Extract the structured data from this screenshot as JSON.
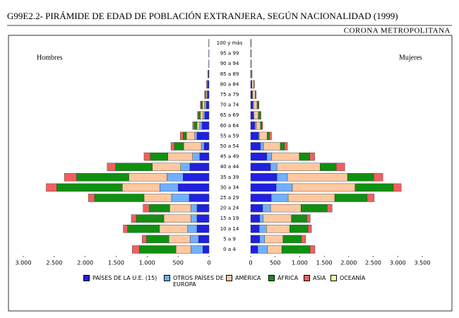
{
  "chart_data": {
    "type": "pyramid",
    "title": "G99E2.2- PIRÁMIDE DE EDAD DE POBLACIÓN EXTRANJERA, SEGÚN NACIONALIDAD (1999)",
    "subtitle": "CORONA METROPOLITANA",
    "men_label": "Hombres",
    "women_label": "Mujeres",
    "categories": [
      "0 a 4",
      "5 a 9",
      "10 a 14",
      "15 a 19",
      "20 a 24",
      "25 a 29",
      "30 a 34",
      "35 a 39",
      "40 a 44",
      "45 a 49",
      "50 a 54",
      "55 a 59",
      "60 a 64",
      "65 a 69",
      "70 a 74",
      "75 a 79",
      "80 a 84",
      "85 a 89",
      "90 a 94",
      "95 a 99",
      "100 y más"
    ],
    "men_xlim": [
      0,
      3000
    ],
    "men_xticks": [
      {
        "value": 3000,
        "label": "3.000"
      },
      {
        "value": 2500,
        "label": "2.500"
      },
      {
        "value": 2000,
        "label": "2.000"
      },
      {
        "value": 1500,
        "label": "1.500"
      },
      {
        "value": 1000,
        "label": "1.000"
      },
      500,
      0
    ],
    "women_xlim": [
      0,
      3500
    ],
    "women_xticks": [
      0,
      500,
      {
        "value": 1000,
        "label": "1.000"
      },
      {
        "value": 1500,
        "label": "1.500"
      },
      {
        "value": 2000,
        "label": "2.000"
      },
      {
        "value": 2500,
        "label": "2.500"
      },
      {
        "value": 3000,
        "label": "3.000"
      },
      {
        "value": 3500,
        "label": "3.500"
      }
    ],
    "series": [
      {
        "name": "PAÍSES DE LA U.E. (15)",
        "color": "#2020e0",
        "men": [
          100,
          170,
          195,
          195,
          195,
          320,
          500,
          420,
          310,
          150,
          80,
          195,
          115,
          70,
          45,
          25,
          15,
          10,
          5,
          5,
          5
        ],
        "women": [
          145,
          185,
          175,
          185,
          245,
          420,
          520,
          535,
          405,
          330,
          200,
          160,
          85,
          55,
          45,
          30,
          20,
          15,
          5,
          5,
          5
        ]
      },
      {
        "name": "OTROS PAÍSES DE EUROPA",
        "color": "#70b0ff",
        "men": [
          195,
          137,
          150,
          100,
          100,
          285,
          295,
          260,
          150,
          115,
          45,
          35,
          35,
          25,
          25,
          10,
          5,
          0,
          0,
          0,
          0
        ],
        "women": [
          200,
          100,
          145,
          70,
          160,
          345,
          330,
          215,
          130,
          100,
          60,
          15,
          30,
          15,
          15,
          10,
          5,
          0,
          0,
          0,
          0
        ]
      },
      {
        "name": "AMÉRICA",
        "color": "#ffc8a0",
        "men": [
          240,
          340,
          455,
          435,
          340,
          445,
          605,
          615,
          455,
          400,
          285,
          135,
          45,
          45,
          35,
          20,
          10,
          5,
          0,
          0,
          0
        ],
        "women": [
          290,
          375,
          475,
          575,
          620,
          950,
          1280,
          1225,
          880,
          560,
          345,
          160,
          85,
          85,
          70,
          55,
          40,
          15,
          10,
          5,
          5
        ]
      },
      {
        "name": "ÁFRICA",
        "color": "#109010",
        "men": [
          590,
          365,
          515,
          445,
          330,
          800,
          1060,
          845,
          595,
          285,
          150,
          55,
          45,
          35,
          25,
          10,
          5,
          3,
          0,
          0,
          0
        ],
        "women": [
          575,
          375,
          375,
          315,
          535,
          660,
          780,
          535,
          330,
          215,
          85,
          45,
          30,
          45,
          30,
          10,
          5,
          0,
          0,
          0,
          0
        ]
      },
      {
        "name": "ASIA",
        "color": "#f06060",
        "men": [
          115,
          70,
          70,
          80,
          100,
          100,
          170,
          195,
          135,
          100,
          55,
          45,
          25,
          10,
          10,
          5,
          5,
          0,
          0,
          0,
          0
        ],
        "women": [
          100,
          85,
          70,
          70,
          100,
          145,
          160,
          185,
          175,
          100,
          60,
          45,
          15,
          10,
          10,
          5,
          5,
          0,
          0,
          0,
          0
        ]
      },
      {
        "name": "OCEANÍA",
        "color": "#ffffa0",
        "men": [
          0,
          0,
          0,
          0,
          0,
          0,
          0,
          0,
          0,
          0,
          0,
          0,
          0,
          0,
          0,
          0,
          0,
          0,
          0,
          0,
          0
        ],
        "women": [
          0,
          0,
          0,
          0,
          0,
          0,
          0,
          0,
          0,
          0,
          0,
          0,
          0,
          0,
          0,
          0,
          0,
          0,
          0,
          0,
          0
        ]
      }
    ]
  }
}
